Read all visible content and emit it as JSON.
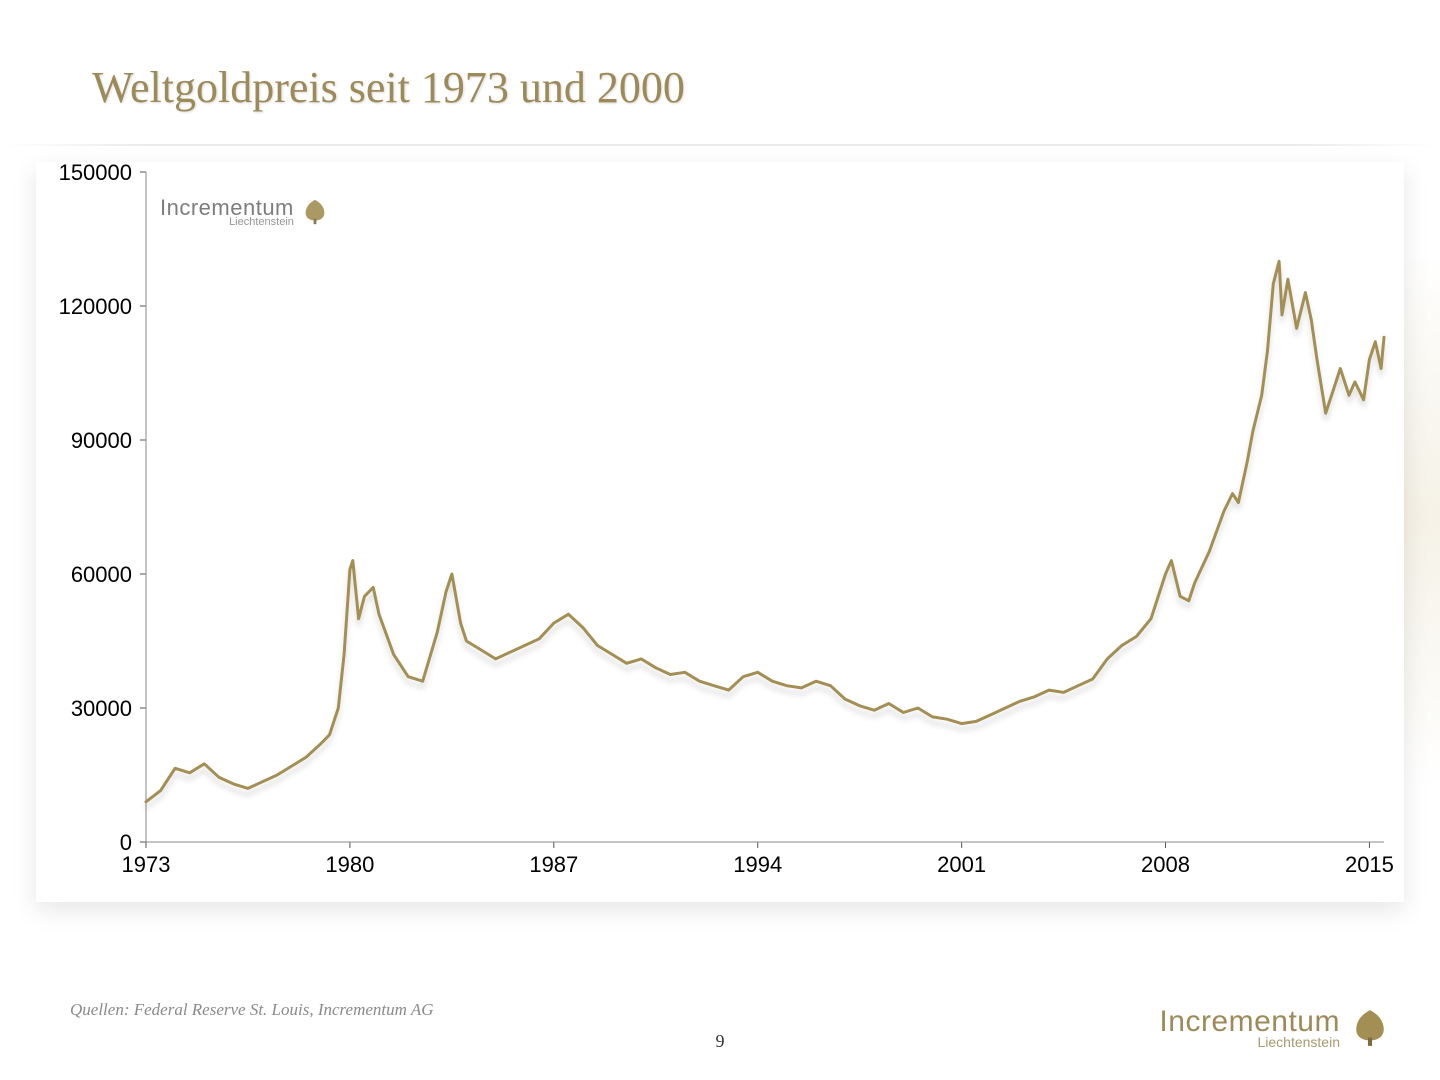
{
  "title": "Weltgoldpreis seit 1973 und 2000",
  "source_line": "Quellen: Federal Reserve St. Louis, Incrementum AG",
  "page_number": "9",
  "logo": {
    "name": "Incrementum",
    "subname": "Liechtenstein"
  },
  "chart": {
    "type": "line",
    "background_color": "#ffffff",
    "line_color": "#a38f53",
    "line_width": 3,
    "shadow_color": "rgba(0,0,0,0.15)",
    "x": {
      "min": 1973,
      "max": 2015.5,
      "ticks": [
        1973,
        1980,
        1987,
        1994,
        2001,
        2008,
        2015
      ],
      "label_fontsize": 22,
      "label_color": "#000000",
      "tick_color": "#555555"
    },
    "y": {
      "min": 0,
      "max": 150000,
      "ticks": [
        0,
        30000,
        60000,
        90000,
        120000,
        150000
      ],
      "label_fontsize": 22,
      "label_color": "#000000",
      "tick_color": "#555555"
    },
    "series": [
      [
        1973.0,
        9000
      ],
      [
        1973.5,
        11500
      ],
      [
        1974.0,
        16500
      ],
      [
        1974.5,
        15500
      ],
      [
        1975.0,
        17500
      ],
      [
        1975.5,
        14500
      ],
      [
        1976.0,
        13000
      ],
      [
        1976.5,
        12000
      ],
      [
        1977.0,
        13500
      ],
      [
        1977.5,
        15000
      ],
      [
        1978.0,
        17000
      ],
      [
        1978.5,
        19000
      ],
      [
        1979.0,
        22000
      ],
      [
        1979.3,
        24000
      ],
      [
        1979.6,
        30000
      ],
      [
        1979.8,
        42000
      ],
      [
        1980.0,
        61000
      ],
      [
        1980.1,
        63000
      ],
      [
        1980.3,
        50000
      ],
      [
        1980.5,
        55000
      ],
      [
        1980.8,
        57000
      ],
      [
        1981.0,
        51000
      ],
      [
        1981.5,
        42000
      ],
      [
        1982.0,
        37000
      ],
      [
        1982.5,
        36000
      ],
      [
        1983.0,
        47000
      ],
      [
        1983.3,
        56000
      ],
      [
        1983.5,
        60000
      ],
      [
        1983.8,
        49000
      ],
      [
        1984.0,
        45000
      ],
      [
        1984.5,
        43000
      ],
      [
        1985.0,
        41000
      ],
      [
        1985.5,
        42500
      ],
      [
        1986.0,
        44000
      ],
      [
        1986.5,
        45500
      ],
      [
        1987.0,
        49000
      ],
      [
        1987.5,
        51000
      ],
      [
        1988.0,
        48000
      ],
      [
        1988.5,
        44000
      ],
      [
        1989.0,
        42000
      ],
      [
        1989.5,
        40000
      ],
      [
        1990.0,
        41000
      ],
      [
        1990.5,
        39000
      ],
      [
        1991.0,
        37500
      ],
      [
        1991.5,
        38000
      ],
      [
        1992.0,
        36000
      ],
      [
        1992.5,
        35000
      ],
      [
        1993.0,
        34000
      ],
      [
        1993.5,
        37000
      ],
      [
        1994.0,
        38000
      ],
      [
        1994.5,
        36000
      ],
      [
        1995.0,
        35000
      ],
      [
        1995.5,
        34500
      ],
      [
        1996.0,
        36000
      ],
      [
        1996.5,
        35000
      ],
      [
        1997.0,
        32000
      ],
      [
        1997.5,
        30500
      ],
      [
        1998.0,
        29500
      ],
      [
        1998.5,
        31000
      ],
      [
        1999.0,
        29000
      ],
      [
        1999.5,
        30000
      ],
      [
        2000.0,
        28000
      ],
      [
        2000.5,
        27500
      ],
      [
        2001.0,
        26500
      ],
      [
        2001.5,
        27000
      ],
      [
        2002.0,
        28500
      ],
      [
        2002.5,
        30000
      ],
      [
        2003.0,
        31500
      ],
      [
        2003.5,
        32500
      ],
      [
        2004.0,
        34000
      ],
      [
        2004.5,
        33500
      ],
      [
        2005.0,
        35000
      ],
      [
        2005.5,
        36500
      ],
      [
        2006.0,
        41000
      ],
      [
        2006.5,
        44000
      ],
      [
        2007.0,
        46000
      ],
      [
        2007.5,
        50000
      ],
      [
        2008.0,
        60000
      ],
      [
        2008.2,
        63000
      ],
      [
        2008.5,
        55000
      ],
      [
        2008.8,
        54000
      ],
      [
        2009.0,
        58000
      ],
      [
        2009.5,
        65000
      ],
      [
        2010.0,
        74000
      ],
      [
        2010.3,
        78000
      ],
      [
        2010.5,
        76000
      ],
      [
        2010.8,
        85000
      ],
      [
        2011.0,
        92000
      ],
      [
        2011.3,
        100000
      ],
      [
        2011.5,
        110000
      ],
      [
        2011.7,
        125000
      ],
      [
        2011.9,
        130000
      ],
      [
        2012.0,
        118000
      ],
      [
        2012.2,
        126000
      ],
      [
        2012.5,
        115000
      ],
      [
        2012.8,
        123000
      ],
      [
        2013.0,
        117000
      ],
      [
        2013.2,
        108000
      ],
      [
        2013.5,
        96000
      ],
      [
        2013.8,
        102000
      ],
      [
        2014.0,
        106000
      ],
      [
        2014.3,
        100000
      ],
      [
        2014.5,
        103000
      ],
      [
        2014.8,
        99000
      ],
      [
        2015.0,
        108000
      ],
      [
        2015.2,
        112000
      ],
      [
        2015.4,
        106000
      ],
      [
        2015.5,
        113000
      ]
    ]
  }
}
